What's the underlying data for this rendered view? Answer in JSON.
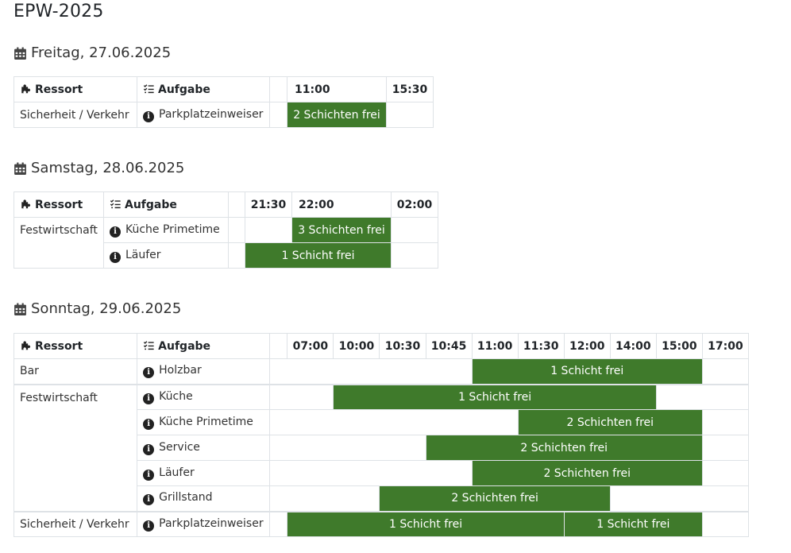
{
  "page_title": "EPW-2025",
  "headers": {
    "ressort": "Ressort",
    "aufgabe": "Aufgabe"
  },
  "days": [
    {
      "title": "Freitag, 27.06.2025",
      "times": [
        "11:00",
        "15:30"
      ],
      "rows": [
        {
          "ressort": "Sicherheit / Verkehr",
          "task": "Parkplatzeinweiser",
          "slot": "2 Schichten frei"
        }
      ]
    },
    {
      "title": "Samstag, 28.06.2025",
      "times": [
        "21:30",
        "22:00",
        "02:00"
      ],
      "rows": [
        {
          "ressort": "Festwirtschaft",
          "task": "Küche Primetime",
          "slot": "3 Schichten frei"
        },
        {
          "ressort": "",
          "task": "Läufer",
          "slot": "1 Schicht frei"
        }
      ]
    },
    {
      "title": "Sonntag, 29.06.2025",
      "times": [
        "07:00",
        "10:00",
        "10:30",
        "10:45",
        "11:00",
        "11:30",
        "12:00",
        "14:00",
        "15:00",
        "17:00"
      ],
      "rows": [
        {
          "ressort": "Bar",
          "task": "Holzbar",
          "slot": "1 Schicht frei"
        },
        {
          "ressort": "Festwirtschaft",
          "task": "Küche",
          "slot": "1 Schicht frei"
        },
        {
          "ressort": "",
          "task": "Küche Primetime",
          "slot": "2 Schichten frei"
        },
        {
          "ressort": "",
          "task": "Service",
          "slot": "2 Schichten frei"
        },
        {
          "ressort": "",
          "task": "Läufer",
          "slot": "2 Schichten frei"
        },
        {
          "ressort": "",
          "task": "Grillstand",
          "slot": "2 Schichten frei"
        },
        {
          "ressort": "Sicherheit / Verkehr",
          "task": "Parkplatzeinweiser",
          "slot": "1 Schicht frei",
          "slot2": "1 Schicht frei"
        }
      ]
    }
  ]
}
